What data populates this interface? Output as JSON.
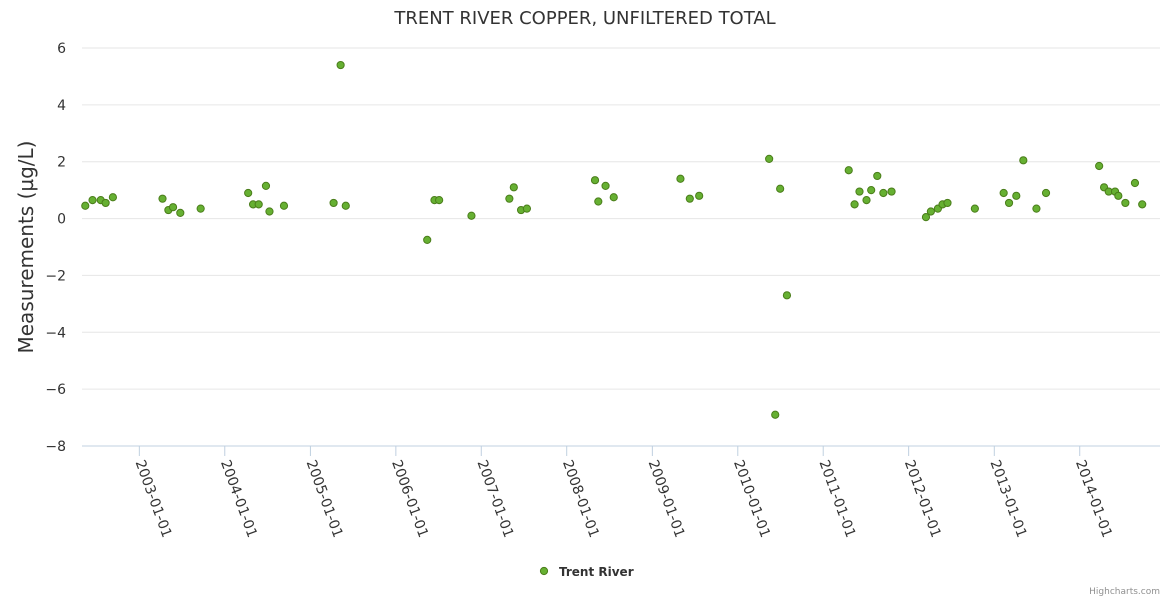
{
  "chart_data": {
    "type": "scatter",
    "title": "TRENT RIVER COPPER, UNFILTERED TOTAL",
    "ylabel": "Measurements (µg/L)",
    "xlabel": "",
    "ylim": [
      -8,
      6
    ],
    "yticks": [
      6,
      4,
      2,
      0,
      -2,
      -4,
      -6,
      -8
    ],
    "yticks_labels": [
      "6",
      "4",
      "2",
      "0",
      "−2",
      "−4",
      "−6",
      "−8"
    ],
    "xticks": [
      "2003-01-01",
      "2004-01-01",
      "2005-01-01",
      "2006-01-01",
      "2007-01-01",
      "2008-01-01",
      "2009-01-01",
      "2010-01-01",
      "2011-01-01",
      "2012-01-01",
      "2013-01-01",
      "2014-01-01"
    ],
    "xlim": [
      "2002-05-01",
      "2014-12-10"
    ],
    "grid": true,
    "legend_position": "bottom-center",
    "series": [
      {
        "name": "Trent River",
        "color": "#66b032",
        "edge_color": "#4a7d1a",
        "points": [
          [
            "2002-05-15",
            0.45
          ],
          [
            "2002-06-15",
            0.65
          ],
          [
            "2002-07-20",
            0.65
          ],
          [
            "2002-08-10",
            0.55
          ],
          [
            "2002-09-10",
            0.75
          ],
          [
            "2003-04-10",
            0.7
          ],
          [
            "2003-05-05",
            0.3
          ],
          [
            "2003-05-25",
            0.4
          ],
          [
            "2003-06-25",
            0.2
          ],
          [
            "2003-09-20",
            0.35
          ],
          [
            "2004-04-10",
            0.9
          ],
          [
            "2004-05-01",
            0.5
          ],
          [
            "2004-05-25",
            0.5
          ],
          [
            "2004-06-25",
            1.15
          ],
          [
            "2004-07-10",
            0.25
          ],
          [
            "2004-09-10",
            0.45
          ],
          [
            "2005-04-10",
            0.55
          ],
          [
            "2005-05-10",
            5.4
          ],
          [
            "2005-06-01",
            0.45
          ],
          [
            "2006-05-15",
            -0.75
          ],
          [
            "2006-06-15",
            0.65
          ],
          [
            "2006-07-05",
            0.65
          ],
          [
            "2006-11-20",
            0.1
          ],
          [
            "2007-05-01",
            0.7
          ],
          [
            "2007-05-20",
            1.1
          ],
          [
            "2007-06-20",
            0.3
          ],
          [
            "2007-07-15",
            0.35
          ],
          [
            "2008-05-01",
            1.35
          ],
          [
            "2008-05-15",
            0.6
          ],
          [
            "2008-06-15",
            1.15
          ],
          [
            "2008-07-20",
            0.75
          ],
          [
            "2009-05-01",
            1.4
          ],
          [
            "2009-06-10",
            0.7
          ],
          [
            "2009-07-20",
            0.8
          ],
          [
            "2010-05-15",
            2.1
          ],
          [
            "2010-06-10",
            -6.9
          ],
          [
            "2010-07-01",
            1.05
          ],
          [
            "2010-07-30",
            -2.7
          ],
          [
            "2011-04-20",
            1.7
          ],
          [
            "2011-05-15",
            0.5
          ],
          [
            "2011-06-05",
            0.95
          ],
          [
            "2011-07-05",
            0.65
          ],
          [
            "2011-07-25",
            1.0
          ],
          [
            "2011-08-20",
            1.5
          ],
          [
            "2011-09-15",
            0.9
          ],
          [
            "2011-10-20",
            0.95
          ],
          [
            "2012-03-15",
            0.05
          ],
          [
            "2012-04-05",
            0.25
          ],
          [
            "2012-05-05",
            0.35
          ],
          [
            "2012-05-25",
            0.5
          ],
          [
            "2012-06-15",
            0.55
          ],
          [
            "2012-10-10",
            0.35
          ],
          [
            "2013-02-10",
            0.9
          ],
          [
            "2013-03-05",
            0.55
          ],
          [
            "2013-04-05",
            0.8
          ],
          [
            "2013-05-05",
            2.05
          ],
          [
            "2013-06-30",
            0.35
          ],
          [
            "2013-08-10",
            0.9
          ],
          [
            "2014-03-25",
            1.85
          ],
          [
            "2014-04-15",
            1.1
          ],
          [
            "2014-05-05",
            0.95
          ],
          [
            "2014-06-01",
            0.95
          ],
          [
            "2014-06-15",
            0.8
          ],
          [
            "2014-07-15",
            0.55
          ],
          [
            "2014-08-25",
            1.25
          ],
          [
            "2014-09-25",
            0.5
          ]
        ]
      }
    ],
    "credits": "Highcharts.com"
  }
}
